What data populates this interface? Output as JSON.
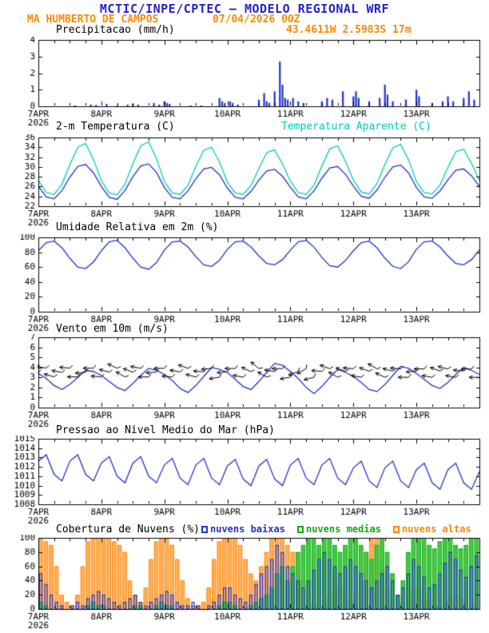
{
  "header": {
    "title": "MCTIC/INPE/CPTEC — MODELO REGIONAL WRF",
    "station": "MA HUMBERTO DE CAMPOS",
    "run": "07/04/2026 00Z",
    "coords": "43.4611W 2.5983S 17m",
    "title_color": "#2222cc",
    "station_color": "#ff8800"
  },
  "x_axis": {
    "min": 0,
    "max": 168,
    "minor_step": 6,
    "ticks": [
      {
        "h": 0,
        "label": "7APR",
        "sub": "2026"
      },
      {
        "h": 24,
        "label": "8APR"
      },
      {
        "h": 48,
        "label": "9APR"
      },
      {
        "h": 72,
        "label": "10APR"
      },
      {
        "h": 96,
        "label": "11APR"
      },
      {
        "h": 120,
        "label": "12APR"
      },
      {
        "h": 144,
        "label": "13APR"
      }
    ]
  },
  "chart_data": [
    {
      "id": "precip",
      "type": "bar",
      "title": "Precipitacao (mm/h)",
      "ylim": [
        0,
        4
      ],
      "yticks": [
        0,
        1,
        2,
        3,
        4
      ],
      "color": "#2233cc",
      "values": [
        [
          14,
          0.05
        ],
        [
          20,
          0.1
        ],
        [
          22,
          0.08
        ],
        [
          26,
          0.15
        ],
        [
          30,
          0.05
        ],
        [
          34,
          0.1
        ],
        [
          36,
          0.15
        ],
        [
          38,
          0.1
        ],
        [
          44,
          0.2
        ],
        [
          46,
          0.1
        ],
        [
          48,
          0.3
        ],
        [
          49,
          0.2
        ],
        [
          50,
          0.15
        ],
        [
          58,
          0.05
        ],
        [
          62,
          0.05
        ],
        [
          69,
          0.5
        ],
        [
          70,
          0.3
        ],
        [
          71,
          0.2
        ],
        [
          73,
          0.3
        ],
        [
          74,
          0.2
        ],
        [
          76,
          0.1
        ],
        [
          84,
          0.4
        ],
        [
          86,
          0.8
        ],
        [
          87,
          0.3
        ],
        [
          88,
          0.2
        ],
        [
          90,
          0.9
        ],
        [
          92,
          2.7
        ],
        [
          93,
          1.3
        ],
        [
          94,
          0.5
        ],
        [
          95,
          0.4
        ],
        [
          97,
          0.5
        ],
        [
          99,
          0.3
        ],
        [
          101,
          0.2
        ],
        [
          108,
          0.3
        ],
        [
          110,
          0.5
        ],
        [
          112,
          0.4
        ],
        [
          116,
          0.9
        ],
        [
          120,
          0.6
        ],
        [
          121,
          0.9
        ],
        [
          122,
          0.5
        ],
        [
          126,
          0.3
        ],
        [
          130,
          0.5
        ],
        [
          132,
          1.3
        ],
        [
          133,
          0.7
        ],
        [
          135,
          0.3
        ],
        [
          140,
          0.4
        ],
        [
          144,
          1.0
        ],
        [
          145,
          0.6
        ],
        [
          150,
          0.2
        ],
        [
          154,
          0.3
        ],
        [
          156,
          0.6
        ],
        [
          158,
          0.3
        ],
        [
          162,
          0.5
        ],
        [
          164,
          0.9
        ],
        [
          166,
          0.4
        ]
      ]
    },
    {
      "id": "temp",
      "type": "line",
      "title": "2-m Temperatura (C)",
      "secondary_title": "Temperatura Aparente (C)",
      "ylim": [
        22,
        36
      ],
      "yticks": [
        22,
        24,
        26,
        28,
        30,
        32,
        34,
        36
      ],
      "step": 3,
      "series": [
        {
          "name": "2-m Temperatura (C)",
          "color": "#2233cc",
          "values": [
            26.1,
            23.9,
            23.5,
            25.2,
            27.9,
            30.1,
            30.5,
            28.8,
            26.0,
            23.8,
            23.4,
            25.2,
            28.0,
            30.2,
            30.6,
            28.9,
            25.8,
            23.8,
            23.5,
            25.1,
            27.6,
            29.6,
            29.9,
            28.4,
            25.7,
            23.8,
            23.5,
            25.0,
            27.3,
            29.2,
            29.5,
            28.1,
            25.9,
            23.9,
            23.5,
            25.1,
            27.7,
            29.8,
            30.1,
            28.5,
            26.1,
            24.0,
            23.6,
            25.3,
            27.9,
            30.0,
            30.4,
            28.8,
            25.8,
            23.9,
            23.6,
            25.1,
            27.4,
            29.3,
            29.6,
            28.2,
            26.0
          ]
        },
        {
          "name": "Temperatura Aparente (C)",
          "color": "#00ccb4",
          "values": [
            27.3,
            24.8,
            24.4,
            26.5,
            30.5,
            34.0,
            34.8,
            31.5,
            27.2,
            24.7,
            24.3,
            26.5,
            30.7,
            34.3,
            35.1,
            31.7,
            27.0,
            24.7,
            24.4,
            26.3,
            30.1,
            33.4,
            34.0,
            31.0,
            26.9,
            24.7,
            24.4,
            26.2,
            29.7,
            32.9,
            33.5,
            30.6,
            27.1,
            24.8,
            24.4,
            26.3,
            30.2,
            33.7,
            34.3,
            31.1,
            27.3,
            24.9,
            24.5,
            26.6,
            30.5,
            33.9,
            34.6,
            31.5,
            27.0,
            24.8,
            24.5,
            26.3,
            29.9,
            33.1,
            33.6,
            30.7,
            27.2
          ]
        }
      ]
    },
    {
      "id": "rh",
      "type": "line",
      "title": "Umidade Relativa em 2m (%)",
      "ylim": [
        0,
        100
      ],
      "yticks": [
        0,
        20,
        40,
        60,
        80,
        100
      ],
      "step": 3,
      "series": [
        {
          "name": "Umidade Relativa em 2m (%)",
          "color": "#2233cc",
          "values": [
            82,
            93,
            95,
            86,
            72,
            60,
            58,
            67,
            82,
            94,
            96,
            86,
            72,
            60,
            57,
            66,
            83,
            94,
            95,
            87,
            74,
            63,
            61,
            69,
            84,
            94,
            95,
            87,
            75,
            65,
            63,
            70,
            83,
            94,
            96,
            87,
            73,
            62,
            60,
            69,
            82,
            93,
            95,
            86,
            72,
            61,
            58,
            67,
            84,
            94,
            95,
            87,
            75,
            65,
            63,
            70,
            83
          ]
        }
      ]
    },
    {
      "id": "wind",
      "type": "wind",
      "title": "Vento em 10m (m/s)",
      "ylim": [
        0,
        7
      ],
      "yticks": [
        0,
        1,
        2,
        3,
        4,
        5,
        6,
        7
      ],
      "step": 3,
      "speed_color": "#2233cc",
      "barb_color": "#000000",
      "barb_level": 3.5,
      "speed": [
        3.4,
        2.9,
        2.2,
        1.8,
        2.3,
        3.0,
        3.7,
        3.6,
        3.2,
        2.6,
        2.0,
        1.7,
        2.4,
        3.2,
        3.9,
        3.7,
        3.3,
        2.7,
        1.9,
        1.5,
        2.2,
        3.1,
        4.0,
        3.8,
        3.5,
        2.8,
        2.1,
        1.8,
        2.6,
        3.5,
        4.4,
        4.2,
        3.6,
        2.9,
        2.0,
        1.4,
        2.1,
        3.0,
        3.8,
        3.5,
        3.1,
        2.5,
        1.8,
        1.6,
        2.3,
        3.2,
        4.1,
        3.9,
        3.4,
        2.8,
        2.2,
        1.9,
        2.5,
        3.3,
        4.0,
        3.7,
        3.3
      ],
      "directions": [
        95,
        100,
        105,
        100,
        95,
        90,
        85,
        90,
        95,
        105,
        115,
        120,
        110,
        100,
        90,
        85,
        90,
        95,
        100,
        110,
        105,
        95,
        85,
        80,
        85,
        90,
        100,
        115,
        130,
        120,
        100,
        90,
        80,
        70,
        60,
        75,
        95,
        110,
        120,
        110,
        95,
        100,
        110,
        120,
        115,
        105,
        95,
        90,
        85,
        90,
        100,
        110,
        105,
        100,
        95,
        90,
        90
      ]
    },
    {
      "id": "pressure",
      "type": "line",
      "title": "Pressao ao Nivel Medio do Mar (hPa)",
      "ylim": [
        1008,
        1015
      ],
      "yticks": [
        1008,
        1009,
        1010,
        1011,
        1012,
        1013,
        1014,
        1015
      ],
      "step": 3,
      "series": [
        {
          "name": "Pressao ao Nivel Medio do Mar (hPa)",
          "color": "#2233cc",
          "values": [
            1012.6,
            1013.3,
            1011.2,
            1010.5,
            1012.6,
            1013.3,
            1011.2,
            1010.5,
            1012.4,
            1013.1,
            1011.0,
            1010.3,
            1012.4,
            1013.1,
            1011.0,
            1010.3,
            1012.2,
            1012.9,
            1010.8,
            1010.1,
            1012.2,
            1012.9,
            1010.8,
            1010.1,
            1012.1,
            1012.8,
            1010.7,
            1010.0,
            1012.1,
            1012.8,
            1010.7,
            1010.0,
            1012.2,
            1012.9,
            1010.8,
            1010.1,
            1012.2,
            1012.9,
            1010.8,
            1010.1,
            1011.9,
            1012.6,
            1010.5,
            1009.8,
            1011.9,
            1012.6,
            1010.5,
            1009.8,
            1011.7,
            1012.4,
            1010.3,
            1009.6,
            1011.7,
            1012.4,
            1010.3,
            1009.6,
            1011.5
          ]
        }
      ]
    },
    {
      "id": "clouds",
      "type": "cloud-bars",
      "title": "Cobertura de Nuvens (%)",
      "ylim": [
        0,
        100
      ],
      "yticks": [
        0,
        20,
        40,
        60,
        80,
        100
      ],
      "step": 2,
      "series": [
        {
          "name": "nuvens altas",
          "style": "fill",
          "color": "#ff8800",
          "fill": "#ffb060",
          "values": [
            100,
            95,
            90,
            60,
            20,
            10,
            5,
            20,
            60,
            95,
            100,
            100,
            100,
            100,
            95,
            90,
            80,
            40,
            20,
            10,
            30,
            70,
            95,
            100,
            100,
            90,
            70,
            40,
            15,
            5,
            5,
            10,
            30,
            70,
            95,
            100,
            100,
            100,
            90,
            70,
            50,
            40,
            60,
            80,
            100,
            100,
            100,
            90,
            80,
            60,
            40,
            20,
            10,
            5,
            10,
            20,
            40,
            30,
            20,
            10,
            20,
            40,
            80,
            100,
            100,
            60,
            30,
            10,
            5,
            10,
            20,
            30,
            30,
            20,
            10,
            5,
            5,
            10,
            15,
            20,
            15,
            10,
            5,
            10
          ]
        },
        {
          "name": "nuvens medias",
          "style": "fill",
          "color": "#11aa11",
          "fill": "#44cc44",
          "values": [
            10,
            5,
            0,
            0,
            0,
            0,
            0,
            0,
            0,
            5,
            10,
            5,
            5,
            0,
            0,
            0,
            0,
            0,
            5,
            5,
            0,
            0,
            5,
            10,
            5,
            5,
            0,
            0,
            0,
            0,
            0,
            0,
            0,
            0,
            5,
            10,
            10,
            5,
            0,
            0,
            5,
            10,
            15,
            20,
            30,
            50,
            60,
            40,
            60,
            80,
            90,
            100,
            100,
            90,
            100,
            100,
            90,
            80,
            90,
            100,
            100,
            90,
            80,
            70,
            90,
            100,
            80,
            50,
            20,
            40,
            80,
            100,
            100,
            100,
            90,
            85,
            95,
            100,
            100,
            90,
            85,
            90,
            100,
            100
          ]
        },
        {
          "name": "nuvens baixas",
          "style": "outline",
          "color": "#2233cc",
          "values": [
            50,
            35,
            20,
            10,
            5,
            0,
            5,
            10,
            5,
            15,
            20,
            25,
            20,
            15,
            10,
            5,
            10,
            15,
            20,
            10,
            5,
            10,
            15,
            20,
            25,
            20,
            10,
            5,
            5,
            10,
            5,
            0,
            5,
            10,
            20,
            30,
            30,
            20,
            15,
            10,
            20,
            35,
            50,
            60,
            70,
            90,
            80,
            60,
            50,
            40,
            30,
            40,
            55,
            70,
            80,
            70,
            60,
            50,
            60,
            70,
            60,
            50,
            40,
            30,
            40,
            50,
            60,
            40,
            20,
            30,
            50,
            70,
            60,
            45,
            30,
            35,
            50,
            65,
            80,
            70,
            55,
            45,
            60,
            75
          ]
        }
      ],
      "legend": [
        {
          "label": "nuvens baixas",
          "color": "#2233cc"
        },
        {
          "label": "nuvens medias",
          "color": "#11aa11"
        },
        {
          "label": "nuvens altas",
          "color": "#ff8800"
        }
      ]
    }
  ]
}
